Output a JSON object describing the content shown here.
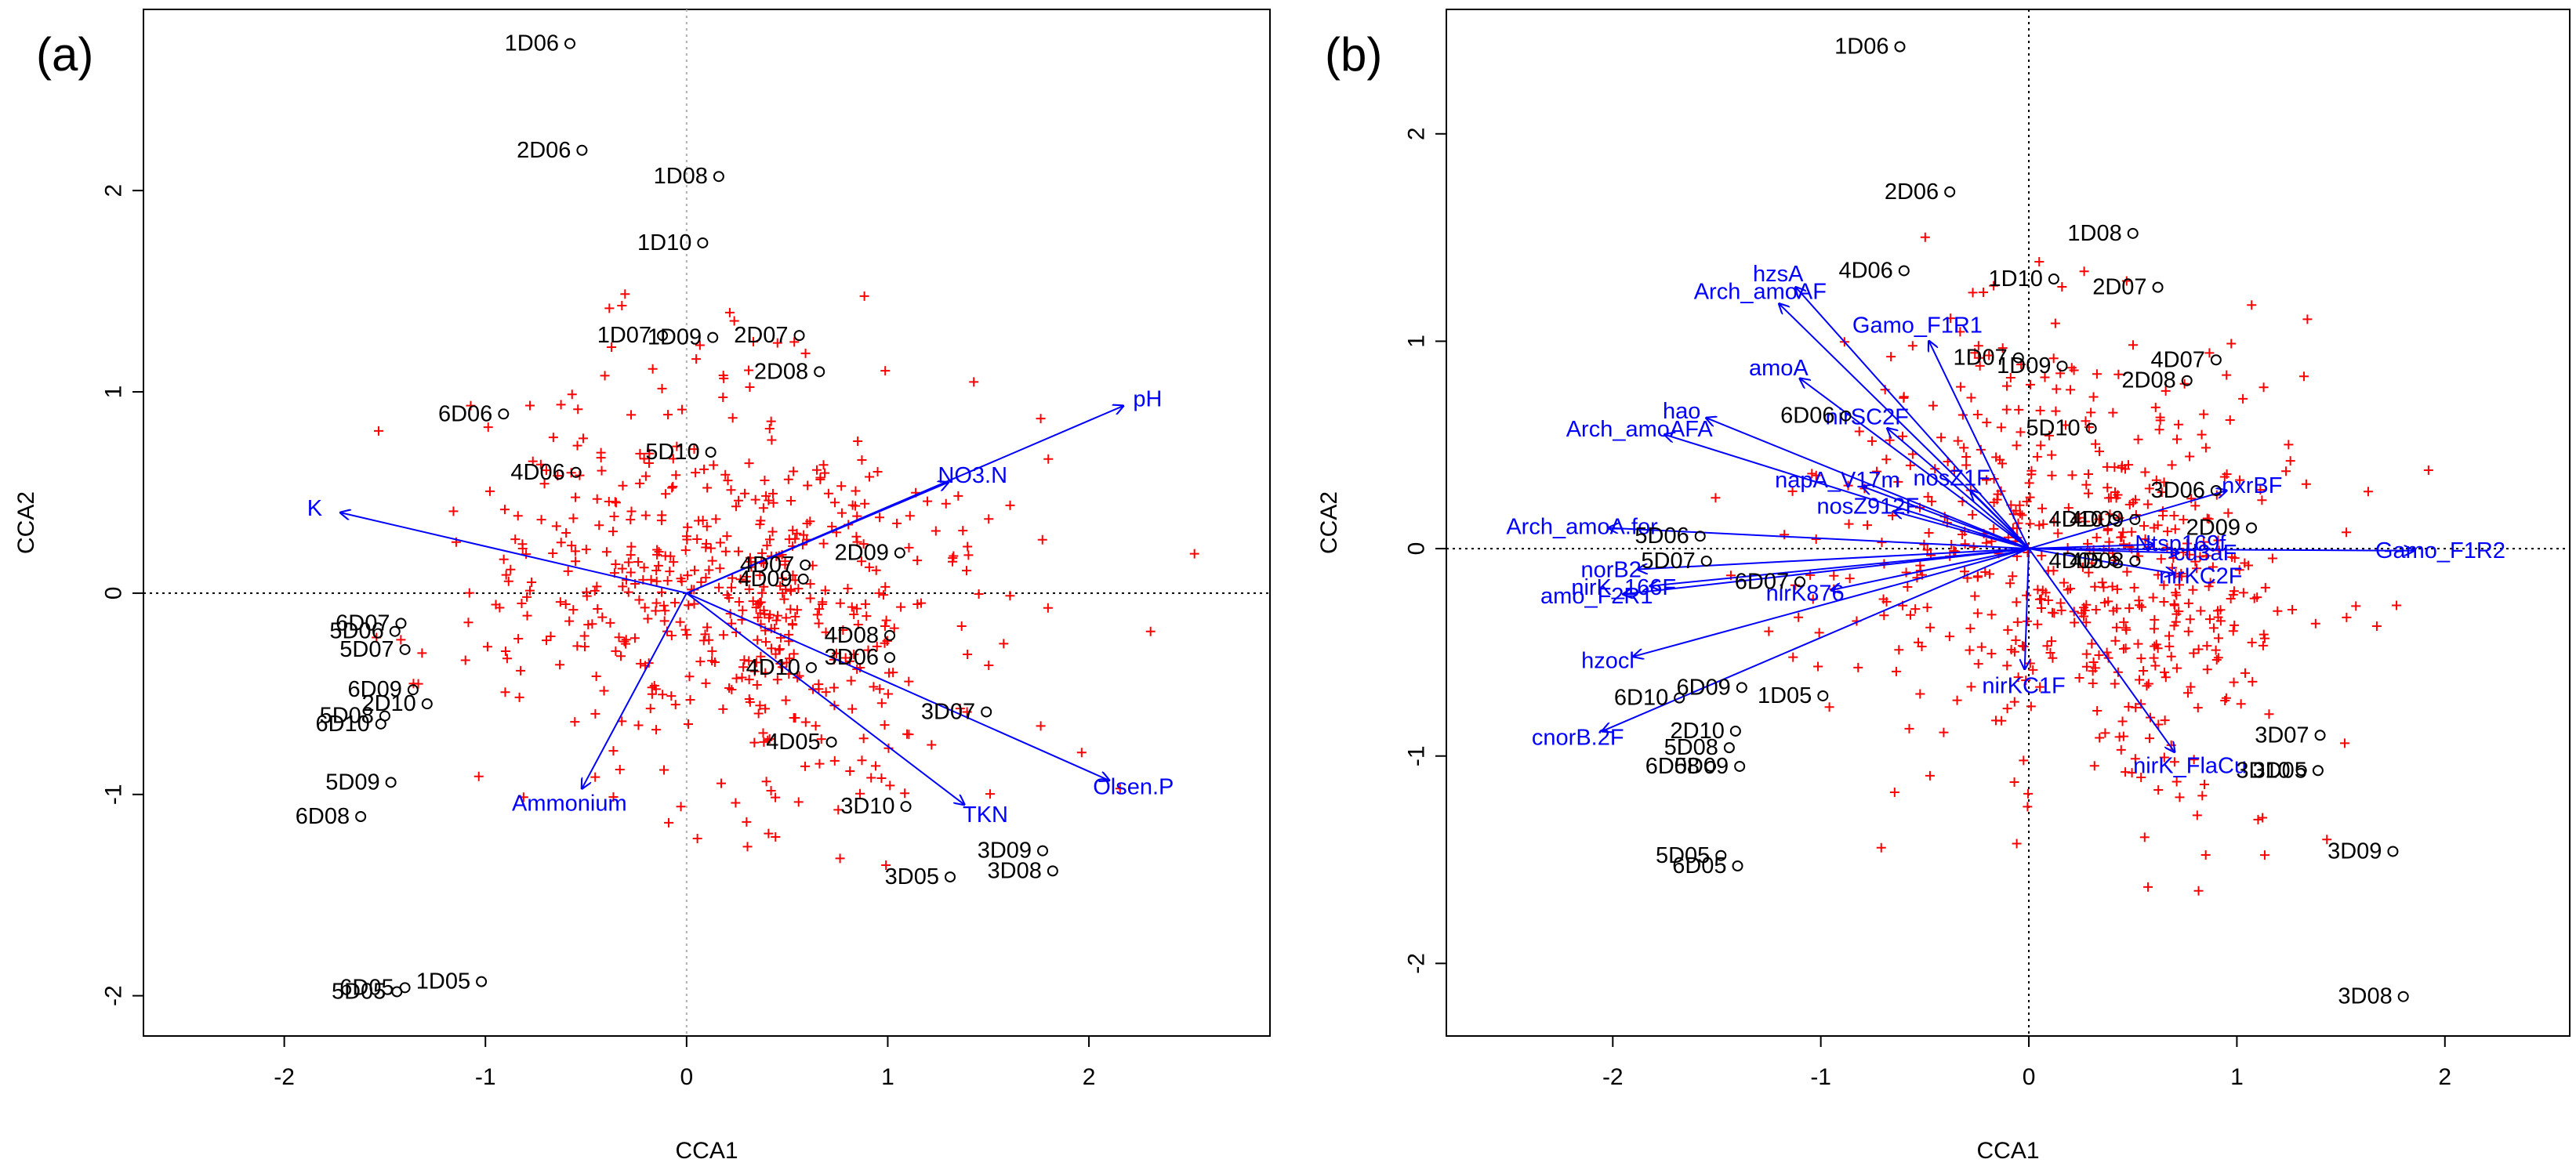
{
  "colors": {
    "species": "#ff0000",
    "arrows": "#0000ff",
    "sites": "#000000",
    "axes": "#000000",
    "origin_lines": "#b0b0b0"
  },
  "chart_data": [
    {
      "type": "scatter",
      "panel": "(a)",
      "xlabel": "CCA1",
      "ylabel": "CCA2",
      "xlim": [
        -2.7,
        2.9
      ],
      "ylim": [
        -2.2,
        2.9
      ],
      "xticks": [
        -2,
        -1,
        0,
        1,
        2
      ],
      "yticks": [
        -2,
        -1,
        0,
        1,
        2
      ],
      "origin_lines": "dashed",
      "sites": [
        {
          "label": "1D06",
          "x": -0.58,
          "y": 2.73
        },
        {
          "label": "2D06",
          "x": -0.52,
          "y": 2.2
        },
        {
          "label": "1D08",
          "x": 0.16,
          "y": 2.07
        },
        {
          "label": "1D10",
          "x": 0.08,
          "y": 1.74
        },
        {
          "label": "2D07",
          "x": 0.56,
          "y": 1.28
        },
        {
          "label": "1D07",
          "x": -0.12,
          "y": 1.28
        },
        {
          "label": "1D09",
          "x": 0.13,
          "y": 1.27
        },
        {
          "label": "2D08",
          "x": 0.66,
          "y": 1.1
        },
        {
          "label": "6D06",
          "x": -0.91,
          "y": 0.89
        },
        {
          "label": "5D10",
          "x": 0.12,
          "y": 0.7
        },
        {
          "label": "4D06",
          "x": -0.55,
          "y": 0.6
        },
        {
          "label": "2D09",
          "x": 1.06,
          "y": 0.2
        },
        {
          "label": "4D07",
          "x": 0.59,
          "y": 0.14
        },
        {
          "label": "4D09",
          "x": 0.58,
          "y": 0.07
        },
        {
          "label": "4D08",
          "x": 1.01,
          "y": -0.21
        },
        {
          "label": "3D06",
          "x": 1.01,
          "y": -0.32
        },
        {
          "label": "4D10",
          "x": 0.62,
          "y": -0.37
        },
        {
          "label": "3D07",
          "x": 1.49,
          "y": -0.59
        },
        {
          "label": "4D05",
          "x": 0.72,
          "y": -0.74
        },
        {
          "label": "3D10",
          "x": 1.09,
          "y": -1.06
        },
        {
          "label": "3D09",
          "x": 1.77,
          "y": -1.28
        },
        {
          "label": "3D05",
          "x": 1.31,
          "y": -1.41
        },
        {
          "label": "3D08",
          "x": 1.82,
          "y": -1.38
        },
        {
          "label": "6D07",
          "x": -1.42,
          "y": -0.15
        },
        {
          "label": "5D06",
          "x": -1.45,
          "y": -0.19
        },
        {
          "label": "5D07",
          "x": -1.4,
          "y": -0.28
        },
        {
          "label": "6D09",
          "x": -1.36,
          "y": -0.48
        },
        {
          "label": "2D10",
          "x": -1.29,
          "y": -0.55
        },
        {
          "label": "5D08",
          "x": -1.5,
          "y": -0.61
        },
        {
          "label": "6D10",
          "x": -1.52,
          "y": -0.65
        },
        {
          "label": "5D09",
          "x": -1.47,
          "y": -0.94
        },
        {
          "label": "6D08",
          "x": -1.62,
          "y": -1.11
        },
        {
          "label": "1D05",
          "x": -1.02,
          "y": -1.93
        },
        {
          "label": "6D05",
          "x": -1.4,
          "y": -1.96
        },
        {
          "label": "5D05",
          "x": -1.44,
          "y": -1.98
        }
      ],
      "arrows": [
        {
          "label": "pH",
          "x": 2.17,
          "y": 0.93
        },
        {
          "label": "NO3.N",
          "x": 1.3,
          "y": 0.55
        },
        {
          "label": "K",
          "x": -1.72,
          "y": 0.4
        },
        {
          "label": "Ammonium",
          "x": -0.52,
          "y": -0.97
        },
        {
          "label": "TKN",
          "x": 1.38,
          "y": -1.05
        },
        {
          "label": "Olsen.P",
          "x": 2.1,
          "y": -0.93
        }
      ]
    },
    {
      "type": "scatter",
      "panel": "(b)",
      "xlabel": "CCA1",
      "ylabel": "CCA2",
      "xlim": [
        -2.8,
        2.6
      ],
      "ylim": [
        -2.35,
        2.6
      ],
      "xticks": [
        -2,
        -1,
        0,
        1,
        2
      ],
      "yticks": [
        -2,
        -1,
        0,
        1,
        2
      ],
      "origin_lines": "dashed",
      "sites": [
        {
          "label": "1D06",
          "x": -0.62,
          "y": 2.42
        },
        {
          "label": "2D06",
          "x": -0.38,
          "y": 1.72
        },
        {
          "label": "1D08",
          "x": 0.5,
          "y": 1.52
        },
        {
          "label": "4D06",
          "x": -0.6,
          "y": 1.34
        },
        {
          "label": "1D10",
          "x": 0.12,
          "y": 1.3
        },
        {
          "label": "2D07",
          "x": 0.62,
          "y": 1.26
        },
        {
          "label": "1D07",
          "x": -0.05,
          "y": 0.92
        },
        {
          "label": "1D09",
          "x": 0.16,
          "y": 0.88
        },
        {
          "label": "4D07",
          "x": 0.9,
          "y": 0.91
        },
        {
          "label": "2D08",
          "x": 0.76,
          "y": 0.81
        },
        {
          "label": "6D06",
          "x": -0.88,
          "y": 0.64
        },
        {
          "label": "5D10",
          "x": 0.3,
          "y": 0.58
        },
        {
          "label": "3D06",
          "x": 0.9,
          "y": 0.28
        },
        {
          "label": "4D10",
          "x": 0.41,
          "y": 0.14
        },
        {
          "label": "4D09",
          "x": 0.51,
          "y": 0.14
        },
        {
          "label": "2D09",
          "x": 1.07,
          "y": 0.1
        },
        {
          "label": "5D06",
          "x": -1.58,
          "y": 0.06
        },
        {
          "label": "5D07",
          "x": -1.55,
          "y": -0.06
        },
        {
          "label": "6D07",
          "x": -1.1,
          "y": -0.16
        },
        {
          "label": "4D05",
          "x": 0.41,
          "y": -0.06
        },
        {
          "label": "4D08",
          "x": 0.51,
          "y": -0.06
        },
        {
          "label": "6D10",
          "x": -1.68,
          "y": -0.72
        },
        {
          "label": "6D09",
          "x": -1.38,
          "y": -0.67
        },
        {
          "label": "1D05",
          "x": -0.99,
          "y": -0.71
        },
        {
          "label": "2D10",
          "x": -1.41,
          "y": -0.88
        },
        {
          "label": "5D08",
          "x": -1.44,
          "y": -0.96
        },
        {
          "label": "5D09",
          "x": -1.39,
          "y": -1.05
        },
        {
          "label": "6D08",
          "x": -1.53,
          "y": -1.05
        },
        {
          "label": "3D07",
          "x": 1.4,
          "y": -0.9
        },
        {
          "label": "3D10",
          "x": 1.31,
          "y": -1.07
        },
        {
          "label": "3D05",
          "x": 1.39,
          "y": -1.07
        },
        {
          "label": "3D09",
          "x": 1.75,
          "y": -1.46
        },
        {
          "label": "5D05",
          "x": -1.48,
          "y": -1.48
        },
        {
          "label": "6D05",
          "x": -1.4,
          "y": -1.53
        },
        {
          "label": "3D08",
          "x": 1.8,
          "y": -2.16
        }
      ],
      "arrows": [
        {
          "label": "Arch_amoAF",
          "x": -1.2,
          "y": 1.18
        },
        {
          "label": "hzsA",
          "x": -1.12,
          "y": 1.26
        },
        {
          "label": "amoA",
          "x": -1.1,
          "y": 0.82
        },
        {
          "label": "Gamo_F1R1",
          "x": -0.48,
          "y": 1.0
        },
        {
          "label": "hao",
          "x": -1.55,
          "y": 0.63
        },
        {
          "label": "Arch_amoAFA",
          "x": -1.75,
          "y": 0.55
        },
        {
          "label": "nirSC2F",
          "x": -0.68,
          "y": 0.58
        },
        {
          "label": "napA_V17m",
          "x": -0.8,
          "y": 0.3
        },
        {
          "label": "nosZ912F",
          "x": -0.65,
          "y": 0.18
        },
        {
          "label": "nosZ1F",
          "x": -0.28,
          "y": 0.28
        },
        {
          "label": "Arch_amoA.for",
          "x": -2.02,
          "y": 0.1
        },
        {
          "label": "norB2",
          "x": -1.88,
          "y": -0.1
        },
        {
          "label": "nirK_166F",
          "x": -1.82,
          "y": -0.18
        },
        {
          "label": "amo_F2R1",
          "x": -1.95,
          "y": -0.22
        },
        {
          "label": "nirK876",
          "x": -0.95,
          "y": -0.2
        },
        {
          "label": "hzocl",
          "x": -1.9,
          "y": -0.52
        },
        {
          "label": "cnorB.2F",
          "x": -2.05,
          "y": -0.88
        },
        {
          "label": "nirKC1F",
          "x": -0.02,
          "y": -0.58
        },
        {
          "label": "nirK_FlaCu",
          "x": 0.7,
          "y": -0.98
        },
        {
          "label": "Gamo_F1R2",
          "x": 1.85,
          "y": -0.01
        },
        {
          "label": "nxrBF",
          "x": 0.95,
          "y": 0.28
        },
        {
          "label": "nirKC2F",
          "x": 0.7,
          "y": -0.12
        },
        {
          "label": "cd3aF",
          "x": 0.72,
          "y": -0.02
        },
        {
          "label": "Ntsp169f",
          "x": 0.6,
          "y": 0.02
        }
      ]
    }
  ]
}
